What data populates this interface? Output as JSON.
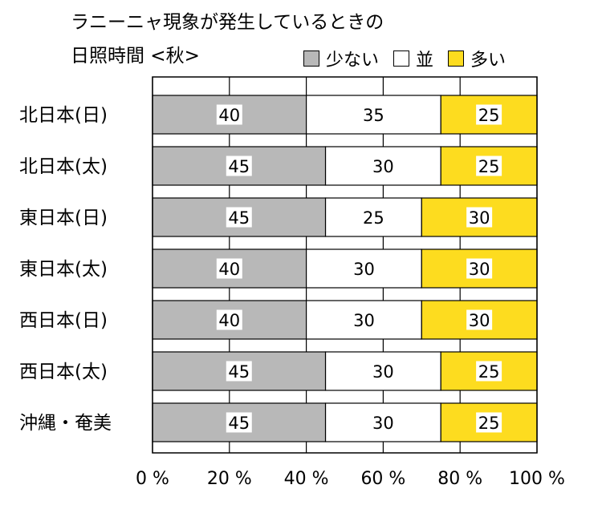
{
  "chart_data": {
    "type": "bar",
    "orientation": "horizontal",
    "stacked": "percent",
    "title": [
      "ラニーニャ現象が発生しているときの",
      "日照時間 <秋>"
    ],
    "categories": [
      "北日本(日)",
      "北日本(太)",
      "東日本(日)",
      "東日本(太)",
      "西日本(日)",
      "西日本(太)",
      "沖縄・奄美"
    ],
    "series": [
      {
        "name": "少ない",
        "color": "#b8b8b8",
        "values": [
          40,
          45,
          45,
          40,
          40,
          45,
          45
        ]
      },
      {
        "name": "並",
        "color": "#ffffff",
        "values": [
          35,
          30,
          25,
          30,
          30,
          30,
          30
        ]
      },
      {
        "name": "多い",
        "color": "#fddc1f",
        "values": [
          25,
          25,
          30,
          30,
          30,
          25,
          25
        ]
      }
    ],
    "xticks": [
      "0 %",
      "20 %",
      "40 %",
      "60 %",
      "80 %",
      "100 %"
    ],
    "xlim": [
      0,
      100
    ],
    "grid": true,
    "legend_position": "top-right"
  }
}
